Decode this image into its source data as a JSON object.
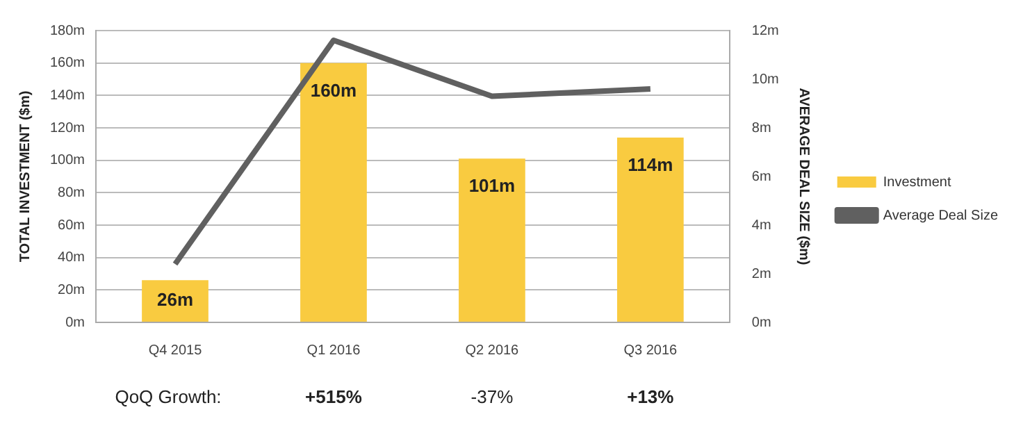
{
  "chart_data": {
    "type": "bar",
    "ylabel": "TOTAL INVESTMENT ($m)",
    "y2label": "AVERAGE DEAL SIZE ($m)",
    "categories": [
      "Q4 2015",
      "Q1 2016",
      "Q2 2016",
      "Q3 2016"
    ],
    "series": [
      {
        "name": "Investment",
        "color": "#f9cb40",
        "values": [
          26,
          160,
          101,
          114
        ],
        "value_labels": [
          "26m",
          "160m",
          "101m",
          "114m"
        ]
      },
      {
        "name": "Average Deal Size",
        "type": "line",
        "axis": "y2",
        "color": "#606060",
        "values": [
          2.4,
          11.6,
          9.3,
          9.6
        ]
      }
    ],
    "ylim": [
      0,
      180
    ],
    "yticks": [
      {
        "value": 0,
        "label": "0m"
      },
      {
        "value": 20,
        "label": "20m"
      },
      {
        "value": 40,
        "label": "40m"
      },
      {
        "value": 60,
        "label": "60m"
      },
      {
        "value": 80,
        "label": "80m"
      },
      {
        "value": 100,
        "label": "100m"
      },
      {
        "value": 120,
        "label": "120m"
      },
      {
        "value": 140,
        "label": "140m"
      },
      {
        "value": 160,
        "label": "160m"
      },
      {
        "value": 180,
        "label": "180m"
      }
    ],
    "y2lim": [
      0,
      12
    ],
    "y2ticks": [
      {
        "value": 0,
        "label": "0m"
      },
      {
        "value": 2,
        "label": "2m"
      },
      {
        "value": 4,
        "label": "4m"
      },
      {
        "value": 6,
        "label": "6m"
      },
      {
        "value": 8,
        "label": "8m"
      },
      {
        "value": 10,
        "label": "10m"
      },
      {
        "value": 12,
        "label": "12m"
      }
    ],
    "annotations": [
      "QoQ Growth:",
      "+515%",
      "-37%",
      "+13%"
    ],
    "grid": "y",
    "legend": "right",
    "marker": "none"
  }
}
